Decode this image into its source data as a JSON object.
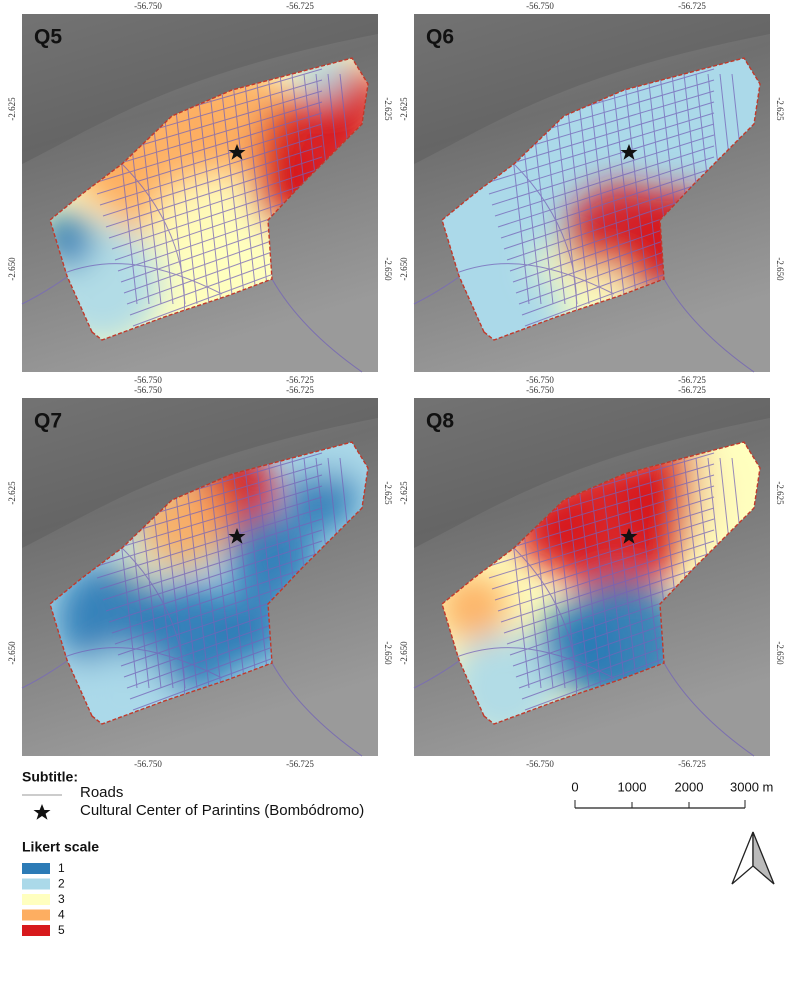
{
  "panels": [
    {
      "label": "Q5"
    },
    {
      "label": "Q6"
    },
    {
      "label": "Q7"
    },
    {
      "label": "Q8"
    }
  ],
  "axis_labels": {
    "x": [
      "-56.750",
      "-56.725"
    ],
    "y": [
      "-2.625",
      "-2.650"
    ]
  },
  "legend": {
    "title": "Subtitle:",
    "items": [
      "Roads",
      "Cultural Center of Parintins (Bombódromo)"
    ],
    "likert_title": "Likert scale",
    "likert": [
      {
        "label": "1",
        "color": "#2c7bb6"
      },
      {
        "label": "2",
        "color": "#abd9e9"
      },
      {
        "label": "3",
        "color": "#ffffbf"
      },
      {
        "label": "4",
        "color": "#fdae61"
      },
      {
        "label": "5",
        "color": "#d7191c"
      }
    ]
  },
  "scale_bar": {
    "labels": [
      "0",
      "1000",
      "2000",
      "3000 m"
    ]
  }
}
